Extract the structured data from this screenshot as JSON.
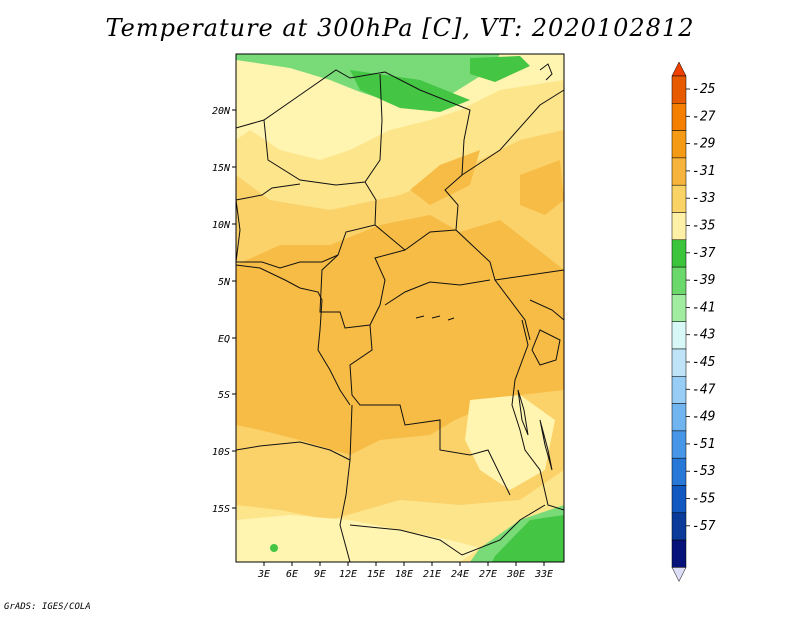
{
  "title": "Temperature at 300hPa [C], VT: 2020102812",
  "credit": "GrADS: IGES/COLA",
  "map": {
    "lat_labels": [
      "20N",
      "15N",
      "10N",
      "5N",
      "EQ",
      "5S",
      "10S",
      "15S"
    ],
    "lon_labels": [
      "3E",
      "6E",
      "9E",
      "12E",
      "15E",
      "18E",
      "21E",
      "24E",
      "27E",
      "30E",
      "33E"
    ]
  },
  "colorbar": {
    "labels": [
      "-25",
      "-27",
      "-29",
      "-31",
      "-33",
      "-35",
      "-37",
      "-39",
      "-41",
      "-43",
      "-45",
      "-47",
      "-49",
      "-51",
      "-53",
      "-55",
      "-57"
    ],
    "colors": [
      "#e85a00",
      "#f47f00",
      "#f59a14",
      "#f7b43c",
      "#fad366",
      "#fff0a8",
      "#3cc43c",
      "#6ad86a",
      "#a0eca0",
      "#d8f8f8",
      "#bfe4f8",
      "#98cef5",
      "#70b4f0",
      "#4896e8",
      "#2878d8",
      "#1158c0",
      "#0a3a9a",
      "#06127a"
    ],
    "top_triangle_color": "#f04000",
    "bottom_triangle_color": "#ddddf8"
  },
  "field_colors": {
    "lightest": "#fff4b0",
    "light": "#fde58c",
    "medium": "#fbd26a",
    "warm": "#f7bc45",
    "green": "#44c544",
    "light_green": "#78db78"
  }
}
